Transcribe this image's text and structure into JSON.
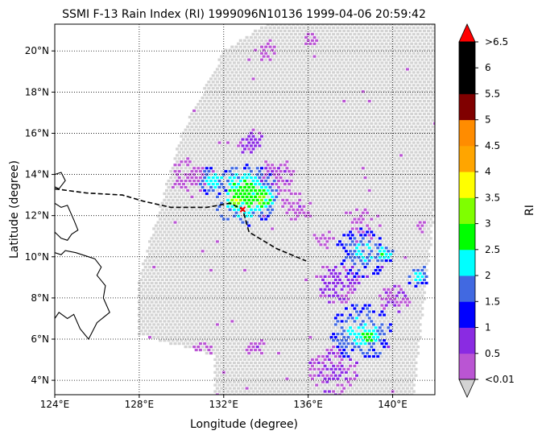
{
  "chart_data": {
    "type": "heatmap",
    "title": "SSMI F-13 Rain Index (RI) 1999096N10136 1999-04-06 20:59:42",
    "xlabel": "Longitude (degree)",
    "ylabel": "Latitude (degree)",
    "xlim": [
      124.0,
      142.0
    ],
    "ylim": [
      3.3,
      21.3
    ],
    "x_ticks": [
      124,
      128,
      132,
      136,
      140
    ],
    "x_tick_labels": [
      "124°E",
      "128°E",
      "132°E",
      "136°E",
      "140°E"
    ],
    "y_ticks": [
      4,
      6,
      8,
      10,
      12,
      14,
      16,
      18,
      20
    ],
    "y_tick_labels": [
      "4°N",
      "6°N",
      "8°N",
      "10°N",
      "12°N",
      "14°N",
      "16°N",
      "18°N",
      "20°N"
    ],
    "grid": true,
    "colorbar": {
      "label": "RI",
      "levels": [
        0.01,
        0.5,
        1,
        1.5,
        2,
        2.5,
        3,
        3.5,
        4,
        4.5,
        5,
        5.5,
        6,
        6.5
      ],
      "tick_labels": [
        "<0.01",
        "0.5",
        "1",
        "1.5",
        "2",
        "2.5",
        "3",
        "3.5",
        "4",
        "4.5",
        "5",
        "5.5",
        "6",
        ">6.5"
      ],
      "colors": [
        "#ba55d3",
        "#8a2be2",
        "#0000ff",
        "#4169e1",
        "#00ffff",
        "#00ff00",
        "#7fff00",
        "#ffff00",
        "#ffa500",
        "#ff8c00",
        "#800000",
        "#000000",
        "#000000"
      ],
      "under_color": "#d3d3d3",
      "over_color": "#ff0000"
    },
    "no_rain_color": "#d3d3d3",
    "swath_lonlat": [
      [
        134.0,
        21.3
      ],
      [
        142.0,
        21.3
      ],
      [
        142.0,
        12.3
      ],
      [
        141.0,
        3.3
      ],
      [
        131.5,
        3.3
      ],
      [
        131.5,
        5.2
      ],
      [
        128.0,
        6.2
      ],
      [
        128.0,
        9.0
      ],
      [
        130.0,
        16.0
      ],
      [
        132.0,
        20.0
      ]
    ],
    "rain_cells": [
      {
        "lon": 133.0,
        "lat": 13.0,
        "ri": 2.7,
        "r": 1.6
      },
      {
        "lon": 132.6,
        "lat": 12.7,
        "ri": 3.2,
        "r": 0.6
      },
      {
        "lon": 133.8,
        "lat": 12.8,
        "ri": 3.2,
        "r": 0.7
      },
      {
        "lon": 131.5,
        "lat": 13.7,
        "ri": 2.3,
        "r": 0.8
      },
      {
        "lon": 134.5,
        "lat": 13.8,
        "ri": 0.5,
        "r": 1.0
      },
      {
        "lon": 130.5,
        "lat": 13.9,
        "ri": 0.2,
        "r": 1.1
      },
      {
        "lon": 133.2,
        "lat": 15.6,
        "ri": 0.8,
        "r": 0.7
      },
      {
        "lon": 135.5,
        "lat": 12.4,
        "ri": 0.3,
        "r": 0.8
      },
      {
        "lon": 138.6,
        "lat": 10.2,
        "ri": 2.0,
        "r": 1.3
      },
      {
        "lon": 139.6,
        "lat": 10.1,
        "ri": 2.6,
        "r": 0.5
      },
      {
        "lon": 141.2,
        "lat": 9.1,
        "ri": 2.2,
        "r": 0.6
      },
      {
        "lon": 138.5,
        "lat": 6.3,
        "ri": 2.2,
        "r": 1.5
      },
      {
        "lon": 138.9,
        "lat": 6.1,
        "ri": 2.8,
        "r": 0.6
      },
      {
        "lon": 137.4,
        "lat": 8.7,
        "ri": 0.8,
        "r": 1.1
      },
      {
        "lon": 137.2,
        "lat": 4.4,
        "ri": 0.6,
        "r": 1.2
      },
      {
        "lon": 138.5,
        "lat": 11.6,
        "ri": 0.2,
        "r": 1.0
      },
      {
        "lon": 136.7,
        "lat": 10.8,
        "ri": 0.2,
        "r": 0.6
      },
      {
        "lon": 130.6,
        "lat": 18.6,
        "ri": 0.2,
        "r": 0.5
      },
      {
        "lon": 134.0,
        "lat": 20.0,
        "ri": 0.2,
        "r": 0.6
      },
      {
        "lon": 136.2,
        "lat": 20.6,
        "ri": 0.2,
        "r": 0.4
      },
      {
        "lon": 131.0,
        "lat": 5.4,
        "ri": 0.2,
        "r": 0.5
      },
      {
        "lon": 133.5,
        "lat": 5.6,
        "ri": 0.3,
        "r": 0.5
      },
      {
        "lon": 141.3,
        "lat": 11.5,
        "ri": 0.2,
        "r": 0.4
      },
      {
        "lon": 140.1,
        "lat": 8.0,
        "ri": 0.5,
        "r": 0.8
      }
    ],
    "track": [
      [
        124.0,
        13.3
      ],
      [
        125.5,
        13.1
      ],
      [
        127.2,
        13.0
      ],
      [
        128.2,
        12.7
      ],
      [
        129.5,
        12.4
      ],
      [
        131.2,
        12.4
      ],
      [
        132.3,
        12.6
      ],
      [
        132.9,
        12.3
      ],
      [
        133.2,
        11.2
      ],
      [
        134.5,
        10.4
      ],
      [
        135.9,
        9.8
      ]
    ],
    "storm_center": {
      "lon": 132.9,
      "lat": 12.3
    },
    "coastlines": [
      [
        [
          124.0,
          14.0
        ],
        [
          124.3,
          14.1
        ],
        [
          124.5,
          13.7
        ],
        [
          124.2,
          13.3
        ],
        [
          124.0,
          13.4
        ]
      ],
      [
        [
          124.0,
          12.6
        ],
        [
          124.3,
          12.4
        ],
        [
          124.6,
          12.5
        ],
        [
          124.9,
          11.8
        ],
        [
          125.1,
          11.3
        ],
        [
          124.8,
          11.1
        ],
        [
          124.6,
          10.8
        ],
        [
          124.3,
          10.9
        ],
        [
          124.0,
          11.2
        ]
      ],
      [
        [
          124.0,
          10.2
        ],
        [
          124.3,
          10.1
        ],
        [
          124.5,
          10.3
        ],
        [
          125.0,
          10.2
        ],
        [
          125.6,
          10.0
        ],
        [
          125.9,
          9.9
        ],
        [
          126.2,
          9.5
        ],
        [
          126.0,
          9.1
        ],
        [
          126.4,
          8.6
        ],
        [
          126.3,
          8.0
        ],
        [
          126.6,
          7.3
        ],
        [
          126.0,
          6.8
        ],
        [
          125.6,
          6.0
        ],
        [
          125.2,
          6.5
        ],
        [
          124.9,
          7.2
        ],
        [
          124.6,
          7.0
        ],
        [
          124.2,
          7.3
        ],
        [
          124.0,
          7.0
        ]
      ]
    ]
  }
}
